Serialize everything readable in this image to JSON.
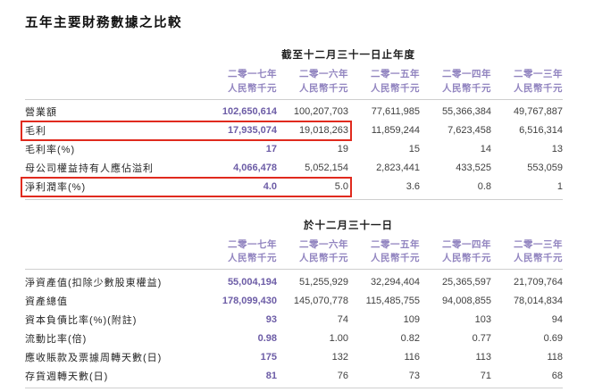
{
  "page": {
    "title": "五年主要財務數據之比較"
  },
  "colors": {
    "accent_purple_header": "#9285C0",
    "accent_purple_values": "#6C5CA6",
    "highlight_red": "#E02A1E",
    "divider_gray": "#CFCFCF"
  },
  "columns": [
    {
      "year": "二零一七年",
      "unit": "人民幣千元"
    },
    {
      "year": "二零一六年",
      "unit": "人民幣千元"
    },
    {
      "year": "二零一五年",
      "unit": "人民幣千元"
    },
    {
      "year": "二零一四年",
      "unit": "人民幣千元"
    },
    {
      "year": "二零一三年",
      "unit": "人民幣千元"
    }
  ],
  "annual_table": {
    "section_title": "截至十二月三十一日止年度",
    "rows": [
      {
        "label": "營業額",
        "highlight": false,
        "values": [
          "102,650,614",
          "100,207,703",
          "77,611,985",
          "55,366,384",
          "49,767,887"
        ]
      },
      {
        "label": "毛利",
        "highlight": true,
        "values": [
          "17,935,074",
          "19,018,263",
          "11,859,244",
          "7,623,458",
          "6,516,314"
        ]
      },
      {
        "label": "毛利率(%)",
        "highlight": false,
        "values": [
          "17",
          "19",
          "15",
          "14",
          "13"
        ]
      },
      {
        "label": "母公司權益持有人應佔溢利",
        "highlight": false,
        "values": [
          "4,066,478",
          "5,052,154",
          "2,823,441",
          "433,525",
          "553,059"
        ]
      },
      {
        "label": "淨利潤率(%)",
        "highlight": true,
        "values": [
          "4.0",
          "5.0",
          "3.6",
          "0.8",
          "1"
        ]
      }
    ]
  },
  "balance_table": {
    "section_title": "於十二月三十一日",
    "rows": [
      {
        "label": "淨資產值(扣除少數股東權益)",
        "highlight": false,
        "values": [
          "55,004,194",
          "51,255,929",
          "32,294,404",
          "25,365,597",
          "21,709,764"
        ]
      },
      {
        "label": "資產總值",
        "highlight": false,
        "values": [
          "178,099,430",
          "145,070,778",
          "115,485,755",
          "94,008,855",
          "78,014,834"
        ]
      },
      {
        "label": "資本負債比率(%)(附註)",
        "highlight": false,
        "values": [
          "93",
          "74",
          "109",
          "103",
          "94"
        ]
      },
      {
        "label": "流動比率(倍)",
        "highlight": false,
        "values": [
          "0.98",
          "1.00",
          "0.82",
          "0.77",
          "0.69"
        ]
      },
      {
        "label": "應收賬款及票據周轉天數(日)",
        "highlight": false,
        "values": [
          "175",
          "132",
          "116",
          "113",
          "118"
        ]
      },
      {
        "label": "存貨週轉天數(日)",
        "highlight": false,
        "values": [
          "81",
          "76",
          "73",
          "71",
          "68"
        ]
      }
    ]
  }
}
